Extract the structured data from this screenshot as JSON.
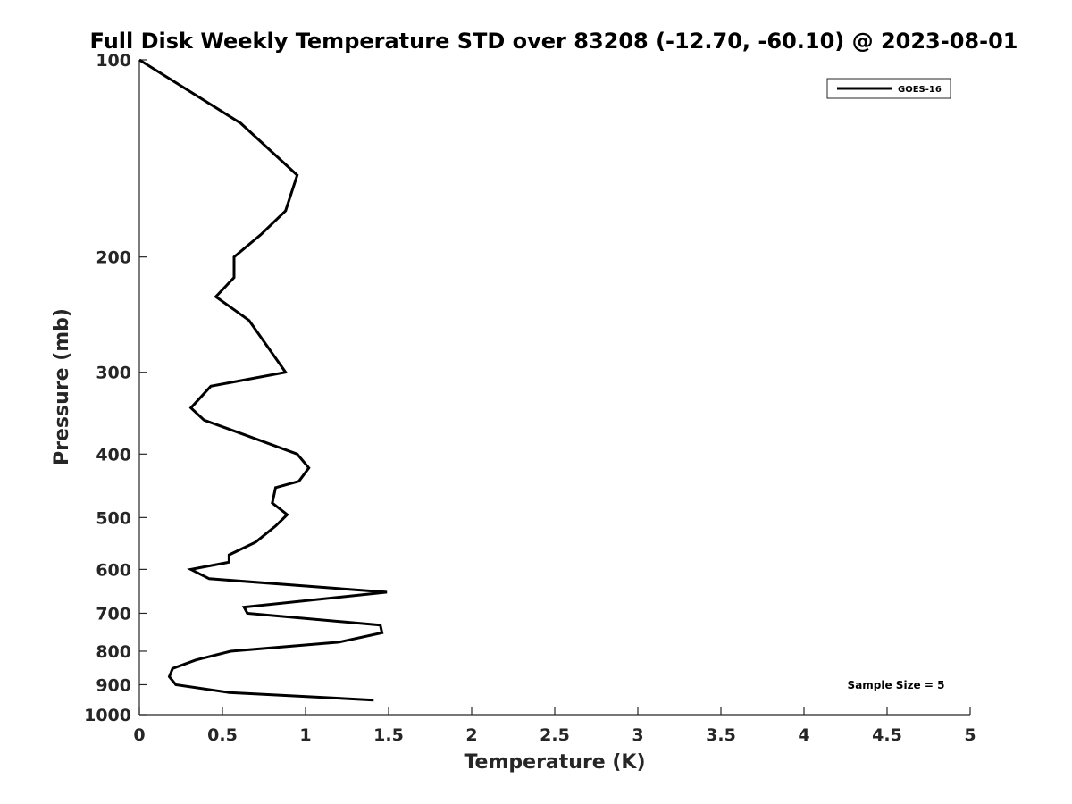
{
  "chart_data": {
    "type": "line",
    "title": "Full Disk Weekly Temperature STD over 83208 (-12.70, -60.10) @ 2023-08-01",
    "xlabel": "Temperature (K)",
    "ylabel": "Pressure (mb)",
    "xlim": [
      0,
      5
    ],
    "ylim": [
      100,
      1000
    ],
    "y_scale": "log",
    "y_reversed": true,
    "x_ticks": [
      "0",
      "0.5",
      "1",
      "1.5",
      "2",
      "2.5",
      "3",
      "3.5",
      "4",
      "4.5",
      "5"
    ],
    "y_ticks": [
      "100",
      "200",
      "300",
      "400",
      "500",
      "600",
      "700",
      "800",
      "900",
      "1000"
    ],
    "grid": false,
    "legend_position": "top-right",
    "annotation": "Sample Size = 5",
    "series": [
      {
        "name": "GOES-16",
        "color": "#000000",
        "x": [
          0.0,
          0.61,
          0.95,
          0.88,
          0.73,
          0.57,
          0.57,
          0.46,
          0.66,
          0.88,
          0.43,
          0.31,
          0.39,
          0.65,
          0.95,
          1.02,
          0.96,
          0.82,
          0.8,
          0.89,
          0.82,
          0.7,
          0.54,
          0.54,
          0.31,
          0.42,
          1.49,
          0.63,
          0.65,
          1.45,
          1.46,
          1.2,
          0.55,
          0.34,
          0.2,
          0.18,
          0.22,
          0.54,
          1.41
        ],
        "y": [
          100,
          125,
          150,
          170,
          185,
          200,
          215,
          230,
          250,
          300,
          315,
          340,
          355,
          375,
          400,
          420,
          440,
          450,
          475,
          495,
          515,
          545,
          570,
          585,
          600,
          620,
          650,
          685,
          700,
          730,
          750,
          775,
          800,
          825,
          850,
          875,
          900,
          925,
          950
        ]
      }
    ]
  }
}
